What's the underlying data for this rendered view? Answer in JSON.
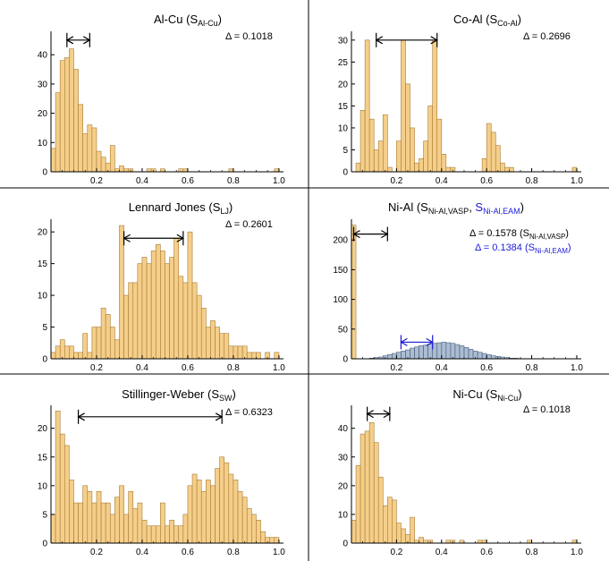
{
  "chart_data": [
    {
      "type": "bar",
      "title": "Al-Cu",
      "subscript": "Al-Cu",
      "delta_text": "Δ = 0.1018",
      "xticks": [
        "0.2",
        "0.4",
        "0.6",
        "0.8",
        "1.0"
      ],
      "yticks": [
        "0",
        "10",
        "20",
        "30",
        "40"
      ],
      "xlim": [
        0.0,
        1.02
      ],
      "ylim": [
        0,
        48
      ],
      "bin_start": 0.01,
      "bin_width": 0.02,
      "values": [
        8,
        27,
        38,
        39,
        42,
        35,
        23,
        13,
        16,
        15,
        7,
        5,
        3,
        9,
        1,
        2,
        1,
        1,
        0,
        0,
        0,
        1,
        1,
        0,
        1,
        0,
        0,
        0,
        1,
        1,
        0,
        0,
        0,
        0,
        0,
        0,
        0,
        0,
        0,
        1,
        0,
        0,
        0,
        0,
        0,
        0,
        0,
        0,
        0,
        1
      ],
      "arrow": [
        0.07,
        0.17
      ],
      "arrow_y": 45
    },
    {
      "type": "bar",
      "title": "Co-Al",
      "subscript": "Co-Al",
      "delta_text": "Δ = 0.2696",
      "xticks": [
        "0.2",
        "0.4",
        "0.6",
        "0.8",
        "1.0"
      ],
      "yticks": [
        "0",
        "5",
        "10",
        "15",
        "20",
        "25",
        "30"
      ],
      "xlim": [
        0.0,
        1.02
      ],
      "ylim": [
        0,
        32
      ],
      "bin_start": 0.01,
      "bin_width": 0.02,
      "values": [
        0,
        2,
        14,
        30,
        12,
        5,
        7,
        13,
        1,
        0,
        7,
        30,
        20,
        10,
        2,
        3,
        7,
        15,
        30,
        12,
        4,
        1,
        1,
        0,
        0,
        0,
        0,
        0,
        0,
        3,
        11,
        9,
        6,
        2,
        1,
        1,
        0,
        0,
        0,
        0,
        0,
        0,
        0,
        0,
        0,
        0,
        0,
        0,
        0,
        1
      ],
      "arrow": [
        0.11,
        0.38
      ],
      "arrow_y": 30
    },
    {
      "type": "bar",
      "title": "Lennard Jones",
      "subscript": "LJ",
      "delta_text": "Δ = 0.2601",
      "xticks": [
        "0.2",
        "0.4",
        "0.6",
        "0.8",
        "1.0"
      ],
      "yticks": [
        "0",
        "5",
        "10",
        "15",
        "20"
      ],
      "xlim": [
        0.0,
        1.02
      ],
      "ylim": [
        0,
        22
      ],
      "bin_start": 0.01,
      "bin_width": 0.02,
      "values": [
        1,
        2,
        3,
        2,
        2,
        1,
        1,
        4,
        1,
        5,
        5,
        8,
        7,
        5,
        3,
        21,
        10,
        12,
        12,
        15,
        16,
        15,
        17,
        18,
        17,
        15,
        16,
        19,
        13,
        12,
        20,
        12,
        10,
        8,
        5,
        6,
        5,
        4,
        4,
        2,
        2,
        2,
        2,
        1,
        1,
        1,
        0,
        1,
        0,
        1
      ],
      "arrow": [
        0.32,
        0.58
      ],
      "arrow_y": 19
    },
    {
      "type": "bar",
      "title": "Ni-Al",
      "subscript": "Ni-Al,VASP",
      "subscript2": "Ni-Al,EAM",
      "delta_text": "Δ = 0.1578",
      "delta_sub": "Ni-Al,VASP",
      "delta2_text": "Δ = 0.1384",
      "delta2_sub": "Ni-Al,EAM",
      "xticks": [
        "0.2",
        "0.4",
        "0.6",
        "0.8",
        "1.0"
      ],
      "yticks": [
        "0",
        "50",
        "100",
        "150",
        "200"
      ],
      "xlim": [
        0.0,
        1.02
      ],
      "ylim": [
        0,
        235
      ],
      "bin_start": 0.01,
      "bin_width": 0.02,
      "values": [
        225,
        0,
        0,
        0,
        0,
        0,
        0,
        0,
        0,
        0,
        0,
        0,
        0,
        0,
        0,
        0,
        0,
        0,
        0,
        0,
        0,
        0,
        0,
        0,
        0,
        0,
        0,
        0,
        0,
        0,
        0,
        0,
        0,
        0,
        0,
        0,
        0,
        0,
        0,
        0,
        0,
        0,
        0,
        0,
        0,
        0,
        0,
        0,
        0,
        0
      ],
      "series2": [
        0,
        0,
        0,
        0,
        1,
        2,
        3,
        5,
        7,
        9,
        11,
        13,
        15,
        18,
        20,
        22,
        23,
        25,
        26,
        27,
        28,
        27,
        26,
        24,
        22,
        19,
        16,
        13,
        11,
        9,
        7,
        5,
        4,
        3,
        2,
        1,
        1,
        0,
        0,
        0,
        0,
        0,
        0,
        0,
        0,
        0,
        0,
        0,
        0,
        0
      ],
      "arrow": [
        0.01,
        0.16
      ],
      "arrow_y": 210,
      "arrow2": [
        0.22,
        0.36
      ],
      "arrow2_y": 28
    },
    {
      "type": "bar",
      "title": "Stillinger-Weber",
      "subscript": "SW",
      "delta_text": "Δ = 0.6323",
      "xticks": [
        "0.2",
        "0.4",
        "0.6",
        "0.8",
        "1.0"
      ],
      "yticks": [
        "0",
        "5",
        "10",
        "15",
        "20"
      ],
      "xlim": [
        0.0,
        1.02
      ],
      "ylim": [
        0,
        24
      ],
      "bin_start": 0.01,
      "bin_width": 0.02,
      "values": [
        5,
        23,
        19,
        17,
        11,
        7,
        7,
        10,
        9,
        7,
        9,
        7,
        7,
        5,
        8,
        10,
        5,
        9,
        6,
        7,
        4,
        3,
        3,
        3,
        7,
        3,
        4,
        3,
        3,
        5,
        10,
        12,
        11,
        9,
        11,
        10,
        13,
        15,
        14,
        12,
        11,
        9,
        8,
        6,
        5,
        4,
        2,
        1,
        1,
        1
      ],
      "arrow": [
        0.12,
        0.75
      ],
      "arrow_y": 22
    },
    {
      "type": "bar",
      "title": "Ni-Cu",
      "subscript": "Ni-Cu",
      "delta_text": "Δ = 0.1018",
      "xticks": [
        "0.2",
        "0.4",
        "0.6",
        "0.8",
        "1.0"
      ],
      "yticks": [
        "0",
        "10",
        "20",
        "30",
        "40"
      ],
      "xlim": [
        0.0,
        1.02
      ],
      "ylim": [
        0,
        48
      ],
      "bin_start": 0.01,
      "bin_width": 0.02,
      "values": [
        8,
        27,
        38,
        39,
        42,
        35,
        23,
        13,
        16,
        15,
        7,
        5,
        3,
        9,
        1,
        2,
        1,
        1,
        0,
        0,
        0,
        1,
        1,
        0,
        1,
        0,
        0,
        0,
        1,
        1,
        0,
        0,
        0,
        0,
        0,
        0,
        0,
        0,
        0,
        1,
        0,
        0,
        0,
        0,
        0,
        0,
        0,
        0,
        0,
        1
      ],
      "arrow": [
        0.07,
        0.17
      ],
      "arrow_y": 45
    }
  ],
  "colors": {
    "bar_fill": "#f5cf8a",
    "bar_stroke": "#a67a35",
    "bar2_fill": "#8fa6c4",
    "bar2_stroke": "#4a5f7c",
    "blue": "#1a1ad6",
    "axis": "#000000"
  }
}
